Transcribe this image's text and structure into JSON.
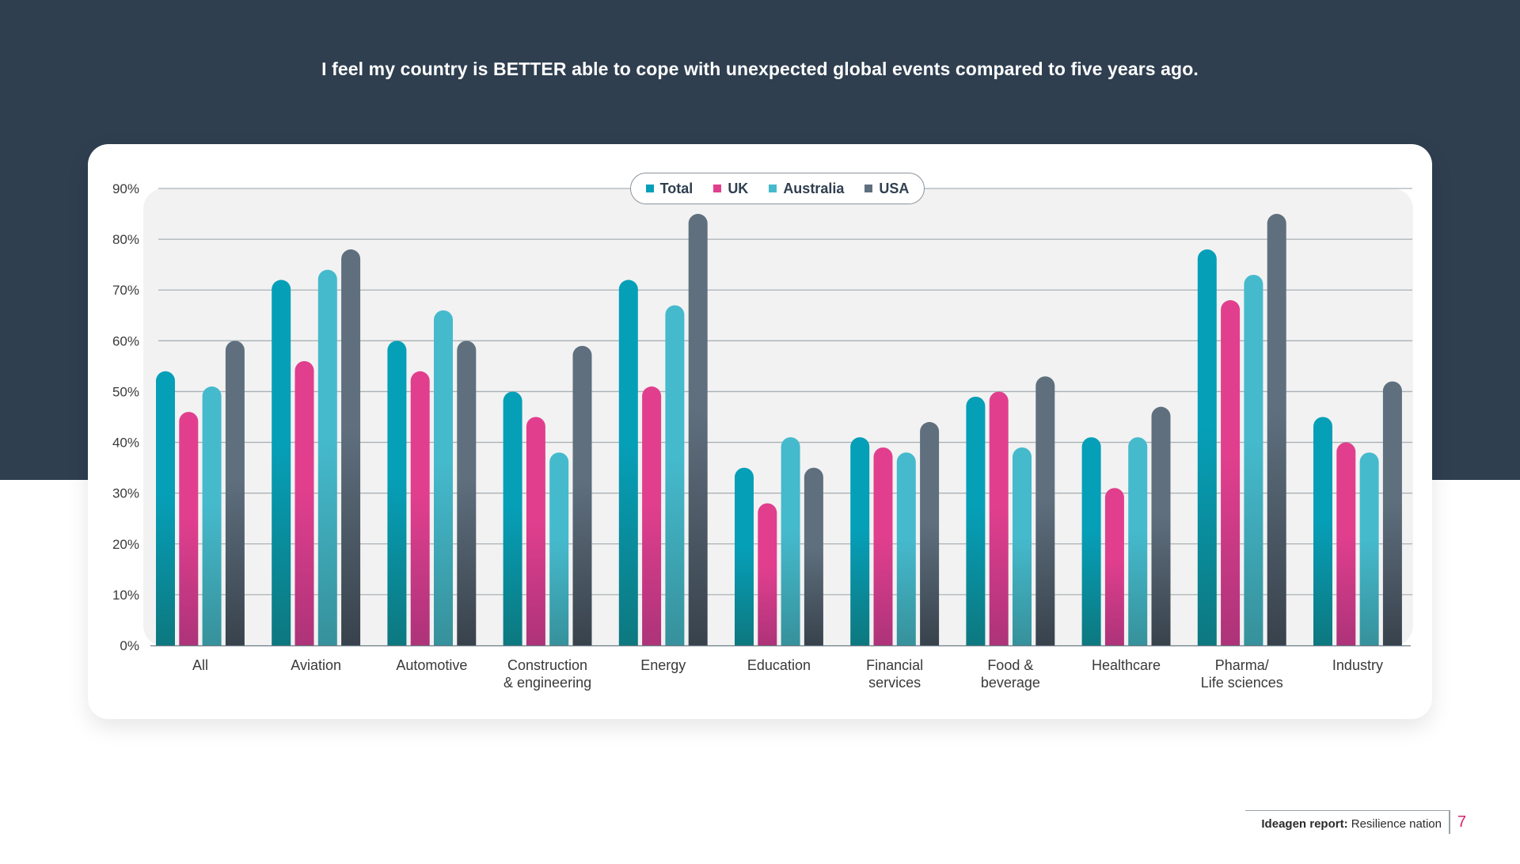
{
  "page": {
    "title": "I feel my country is BETTER able to cope with unexpected global events compared to five years ago.",
    "footer": {
      "brand": "Ideagen report:",
      "subtitle": "Resilience nation",
      "page_number": "7"
    },
    "colors": {
      "background_band": "#2f3f50",
      "card": "#ffffff",
      "plot_panel": "#f2f2f2",
      "gridline": "#a9b2b6",
      "page_number": "#d6226f"
    }
  },
  "chart_data": {
    "type": "bar",
    "title": "I feel my country is BETTER able to cope with unexpected global events compared to five years ago.",
    "xlabel": "",
    "ylabel": "",
    "ylim": [
      0,
      90
    ],
    "yticks": [
      0,
      10,
      20,
      30,
      40,
      50,
      60,
      70,
      80,
      90
    ],
    "ytick_labels": [
      "0%",
      "10%",
      "20%",
      "30%",
      "40%",
      "50%",
      "60%",
      "70%",
      "80%",
      "90%"
    ],
    "grid": true,
    "legend_position": "top-center",
    "categories": [
      [
        "All"
      ],
      [
        "Aviation"
      ],
      [
        "Automotive"
      ],
      [
        "Construction",
        "& engineering"
      ],
      [
        "Energy"
      ],
      [
        "Education"
      ],
      [
        "Financial",
        "services"
      ],
      [
        "Food &",
        "beverage"
      ],
      [
        "Healthcare"
      ],
      [
        "Pharma/",
        "Life sciences"
      ],
      [
        "Industry"
      ]
    ],
    "series": [
      {
        "name": "Total",
        "color": "#069fb8",
        "color_bottom": "#0d787f",
        "values": [
          54,
          72,
          60,
          50,
          72,
          35,
          41,
          49,
          41,
          78,
          45
        ]
      },
      {
        "name": "UK",
        "color": "#e13f8e",
        "color_bottom": "#ad3379",
        "values": [
          46,
          56,
          54,
          45,
          51,
          28,
          39,
          50,
          31,
          68,
          40
        ]
      },
      {
        "name": "Australia",
        "color": "#45bacd",
        "color_bottom": "#36919b",
        "values": [
          51,
          74,
          66,
          38,
          67,
          41,
          38,
          39,
          41,
          73,
          38
        ]
      },
      {
        "name": "USA",
        "color": "#5f6f7e",
        "color_bottom": "#38424c",
        "values": [
          60,
          78,
          60,
          59,
          85,
          35,
          44,
          53,
          47,
          85,
          52
        ]
      }
    ]
  }
}
